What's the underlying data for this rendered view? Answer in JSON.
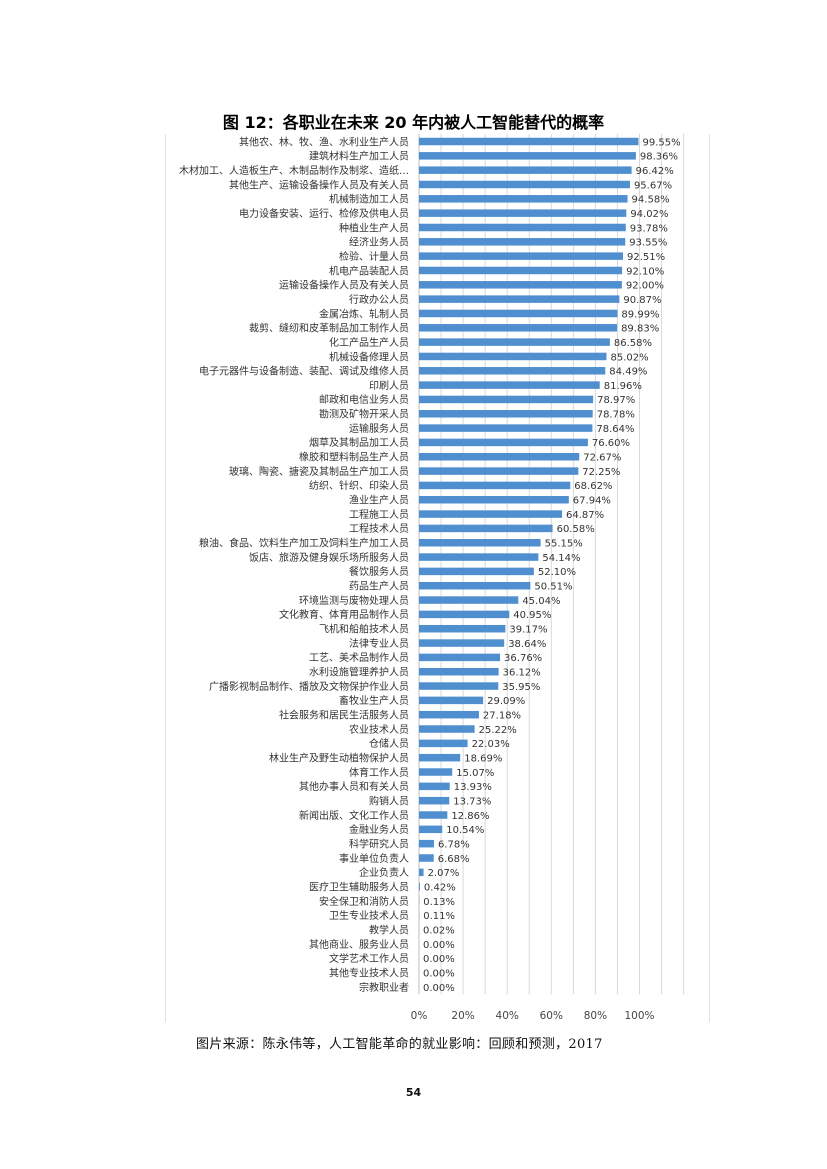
{
  "chart_data": {
    "type": "bar",
    "orientation": "horizontal",
    "title": "图 12：各职业在未来 20 年内被人工智能替代的概率",
    "categories": [
      "其他农、林、牧、渔、水利业生产人员",
      "建筑材料生产加工人员",
      "木材加工、人造板生产、木制品制作及制浆、造纸…",
      "其他生产、运输设备操作人员及有关人员",
      "机械制造加工人员",
      "电力设备安装、运行、检修及供电人员",
      "种植业生产人员",
      "经济业务人员",
      "检验、计量人员",
      "机电产品装配人员",
      "运输设备操作人员及有关人员",
      "行政办公人员",
      "金属冶炼、轧制人员",
      "裁剪、缝纫和皮革制品加工制作人员",
      "化工产品生产人员",
      "机械设备修理人员",
      "电子元器件与设备制造、装配、调试及维修人员",
      "印刷人员",
      "邮政和电信业务人员",
      "勘测及矿物开采人员",
      "运输服务人员",
      "烟草及其制品加工人员",
      "橡胶和塑料制品生产人员",
      "玻璃、陶瓷、搪瓷及其制品生产加工人员",
      "纺织、针织、印染人员",
      "渔业生产人员",
      "工程施工人员",
      "工程技术人员",
      "粮油、食品、饮料生产加工及饲料生产加工人员",
      "饭店、旅游及健身娱乐场所服务人员",
      "餐饮服务人员",
      "药品生产人员",
      "环境监测与废物处理人员",
      "文化教育、体育用品制作人员",
      "飞机和船舶技术人员",
      "法律专业人员",
      "工艺、美术品制作人员",
      "水利设施管理养护人员",
      "广播影视制品制作、播放及文物保护作业人员",
      "畜牧业生产人员",
      "社会服务和居民生活服务人员",
      "农业技术人员",
      "仓储人员",
      "林业生产及野生动植物保护人员",
      "体育工作人员",
      "其他办事人员和有关人员",
      "购销人员",
      "新闻出版、文化工作人员",
      "金融业务人员",
      "科学研究人员",
      "事业单位负责人",
      "企业负责人",
      "医疗卫生辅助服务人员",
      "安全保卫和消防人员",
      "卫生专业技术人员",
      "教学人员",
      "其他商业、服务业人员",
      "文学艺术工作人员",
      "其他专业技术人员",
      "宗教职业者"
    ],
    "values": [
      99.55,
      98.36,
      96.42,
      95.67,
      94.58,
      94.02,
      93.78,
      93.55,
      92.51,
      92.1,
      92.0,
      90.87,
      89.99,
      89.83,
      86.58,
      85.02,
      84.49,
      81.96,
      78.97,
      78.78,
      78.64,
      76.6,
      72.67,
      72.25,
      68.62,
      67.94,
      64.87,
      60.58,
      55.15,
      54.14,
      52.1,
      50.51,
      45.04,
      40.95,
      39.17,
      38.64,
      36.76,
      36.12,
      35.95,
      29.09,
      27.18,
      25.22,
      22.03,
      18.69,
      15.07,
      13.93,
      13.73,
      12.86,
      10.54,
      6.78,
      6.68,
      2.07,
      0.42,
      0.13,
      0.11,
      0.02,
      0.0,
      0.0,
      0.0,
      0.0
    ],
    "value_labels": [
      "99.55%",
      "98.36%",
      "96.42%",
      "95.67%",
      "94.58%",
      "94.02%",
      "93.78%",
      "93.55%",
      "92.51%",
      "92.10%",
      "92.00%",
      "90.87%",
      "89.99%",
      "89.83%",
      "86.58%",
      "85.02%",
      "84.49%",
      "81.96%",
      "78.97%",
      "78.78%",
      "78.64%",
      "76.60%",
      "72.67%",
      "72.25%",
      "68.62%",
      "67.94%",
      "64.87%",
      "60.58%",
      "55.15%",
      "54.14%",
      "52.10%",
      "50.51%",
      "45.04%",
      "40.95%",
      "39.17%",
      "38.64%",
      "36.76%",
      "36.12%",
      "35.95%",
      "29.09%",
      "27.18%",
      "25.22%",
      "22.03%",
      "18.69%",
      "15.07%",
      "13.93%",
      "13.73%",
      "12.86%",
      "10.54%",
      "6.78%",
      "6.68%",
      "2.07%",
      "0.42%",
      "0.13%",
      "0.11%",
      "0.02%",
      "0.00%",
      "0.00%",
      "0.00%",
      "0.00%"
    ],
    "x_ticks": [
      0,
      20,
      40,
      60,
      80,
      100
    ],
    "x_tick_labels": [
      "0%",
      "20%",
      "40%",
      "60%",
      "80%",
      "100%"
    ],
    "xlim": [
      0,
      125
    ],
    "xlabel": "",
    "ylabel": "",
    "grid": true,
    "legend": "none",
    "bar_color": "#4f8fd0"
  },
  "source_note": "图片来源：陈永伟等，人工智能革命的就业影响：回顾和预测，2017",
  "page_number": "54"
}
